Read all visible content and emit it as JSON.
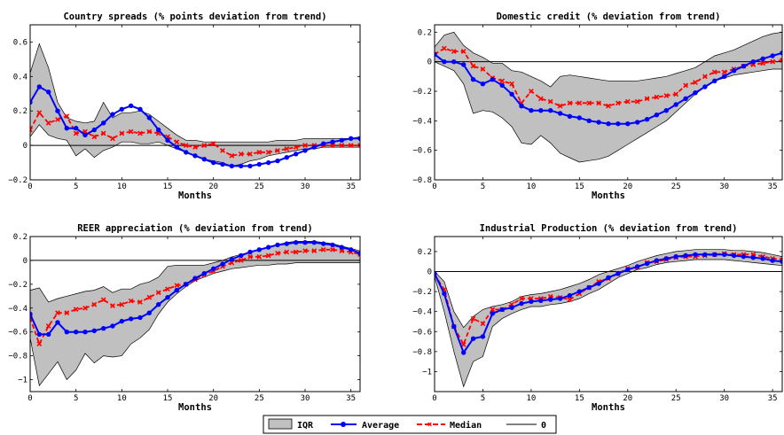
{
  "legend": {
    "items": [
      {
        "key": "iqr",
        "label": "IQR"
      },
      {
        "key": "avg",
        "label": "Average"
      },
      {
        "key": "med",
        "label": "Median"
      },
      {
        "key": "zero",
        "label": "0"
      }
    ]
  },
  "colors": {
    "band_fill": "#c0c0c0",
    "band_edge": "#000000",
    "average": "#0000ff",
    "median": "#ff0000",
    "zero": "#000000"
  },
  "chart_data": [
    {
      "type": "line",
      "title": "Country spreads (% points deviation from trend)",
      "xlabel": "Months",
      "xlim": [
        0,
        36
      ],
      "ylim": [
        -0.2,
        0.7
      ],
      "xticks": [
        0,
        5,
        10,
        15,
        20,
        25,
        30,
        35
      ],
      "xtick_labels": [
        "0",
        "5",
        "10",
        "15",
        "20",
        "25",
        "30",
        "35"
      ],
      "yticks": [
        -0.2,
        0,
        0.2,
        0.4,
        0.6
      ],
      "ytick_labels": [
        "−0.2",
        "0",
        "0.2",
        "0.4",
        "0.6"
      ],
      "x": [
        0,
        1,
        2,
        3,
        4,
        5,
        6,
        7,
        8,
        9,
        10,
        11,
        12,
        13,
        14,
        15,
        16,
        17,
        18,
        19,
        20,
        21,
        22,
        23,
        24,
        25,
        26,
        27,
        28,
        29,
        30,
        31,
        32,
        33,
        34,
        35,
        36
      ],
      "average": [
        0.25,
        0.34,
        0.31,
        0.2,
        0.1,
        0.1,
        0.06,
        0.09,
        0.13,
        0.18,
        0.21,
        0.23,
        0.21,
        0.16,
        0.09,
        0.03,
        -0.01,
        -0.04,
        -0.06,
        -0.08,
        -0.1,
        -0.11,
        -0.12,
        -0.12,
        -0.12,
        -0.11,
        -0.1,
        -0.09,
        -0.07,
        -0.05,
        -0.03,
        -0.01,
        0.01,
        0.02,
        0.03,
        0.04,
        0.04
      ],
      "median": [
        0.09,
        0.19,
        0.13,
        0.15,
        0.17,
        0.07,
        0.08,
        0.05,
        0.07,
        0.04,
        0.07,
        0.08,
        0.07,
        0.08,
        0.07,
        0.05,
        0.02,
        0.0,
        -0.01,
        0.0,
        0.01,
        -0.03,
        -0.06,
        -0.05,
        -0.05,
        -0.04,
        -0.04,
        -0.03,
        -0.02,
        -0.01,
        0.0,
        0.0,
        0.0,
        0.0,
        0.0,
        0.0,
        0.0
      ],
      "iqr_upper": [
        0.42,
        0.59,
        0.45,
        0.25,
        0.16,
        0.14,
        0.13,
        0.14,
        0.25,
        0.16,
        0.19,
        0.19,
        0.2,
        0.18,
        0.14,
        0.1,
        0.06,
        0.03,
        0.03,
        0.02,
        0.02,
        0.02,
        0.02,
        0.02,
        0.02,
        0.02,
        0.02,
        0.03,
        0.03,
        0.03,
        0.04,
        0.04,
        0.04,
        0.04,
        0.04,
        0.04,
        0.05
      ],
      "iqr_lower": [
        0.05,
        0.12,
        0.06,
        0.04,
        0.03,
        -0.06,
        -0.02,
        -0.07,
        -0.03,
        -0.01,
        0.02,
        0.02,
        0.01,
        0.01,
        0.02,
        0.0,
        -0.02,
        -0.04,
        -0.06,
        -0.08,
        -0.09,
        -0.1,
        -0.12,
        -0.11,
        -0.09,
        -0.08,
        -0.06,
        -0.05,
        -0.04,
        -0.03,
        -0.02,
        -0.02,
        -0.01,
        -0.01,
        -0.01,
        -0.01,
        -0.01
      ]
    },
    {
      "type": "line",
      "title": "Domestic credit (% deviation from trend)",
      "xlabel": "Months",
      "xlim": [
        0,
        36
      ],
      "ylim": [
        -0.8,
        0.25
      ],
      "xticks": [
        0,
        5,
        10,
        15,
        20,
        25,
        30,
        35
      ],
      "xtick_labels": [
        "0",
        "5",
        "10",
        "15",
        "20",
        "25",
        "30",
        "35"
      ],
      "yticks": [
        -0.8,
        -0.6,
        -0.4,
        -0.2,
        0,
        0.2
      ],
      "ytick_labels": [
        "−0.8",
        "−0.6",
        "−0.4",
        "−0.2",
        "0",
        "0.2"
      ],
      "x": [
        0,
        1,
        2,
        3,
        4,
        5,
        6,
        7,
        8,
        9,
        10,
        11,
        12,
        13,
        14,
        15,
        16,
        17,
        18,
        19,
        20,
        21,
        22,
        23,
        24,
        25,
        26,
        27,
        28,
        29,
        30,
        31,
        32,
        33,
        34,
        35,
        36
      ],
      "average": [
        0.05,
        0.0,
        0.0,
        -0.02,
        -0.12,
        -0.15,
        -0.12,
        -0.16,
        -0.22,
        -0.3,
        -0.33,
        -0.33,
        -0.33,
        -0.35,
        -0.37,
        -0.38,
        -0.4,
        -0.41,
        -0.42,
        -0.42,
        -0.42,
        -0.41,
        -0.39,
        -0.36,
        -0.33,
        -0.29,
        -0.25,
        -0.21,
        -0.17,
        -0.13,
        -0.1,
        -0.06,
        -0.03,
        0.0,
        0.02,
        0.04,
        0.06
      ],
      "median": [
        0.05,
        0.09,
        0.07,
        0.07,
        -0.03,
        -0.05,
        -0.11,
        -0.13,
        -0.15,
        -0.28,
        -0.2,
        -0.25,
        -0.27,
        -0.3,
        -0.28,
        -0.28,
        -0.28,
        -0.28,
        -0.3,
        -0.28,
        -0.27,
        -0.27,
        -0.25,
        -0.24,
        -0.23,
        -0.22,
        -0.16,
        -0.14,
        -0.1,
        -0.07,
        -0.07,
        -0.05,
        -0.03,
        -0.02,
        -0.01,
        0.0,
        0.01
      ],
      "iqr_upper": [
        0.1,
        0.18,
        0.2,
        0.11,
        0.06,
        0.03,
        -0.01,
        -0.01,
        -0.06,
        -0.07,
        -0.1,
        -0.13,
        -0.17,
        -0.1,
        -0.09,
        -0.1,
        -0.11,
        -0.12,
        -0.13,
        -0.13,
        -0.13,
        -0.13,
        -0.12,
        -0.11,
        -0.1,
        -0.08,
        -0.06,
        -0.04,
        0.0,
        0.04,
        0.06,
        0.08,
        0.11,
        0.14,
        0.17,
        0.19,
        0.2
      ],
      "iqr_lower": [
        0.0,
        -0.03,
        -0.06,
        -0.15,
        -0.35,
        -0.33,
        -0.34,
        -0.38,
        -0.44,
        -0.55,
        -0.56,
        -0.5,
        -0.55,
        -0.62,
        -0.65,
        -0.68,
        -0.67,
        -0.66,
        -0.64,
        -0.6,
        -0.56,
        -0.52,
        -0.48,
        -0.44,
        -0.4,
        -0.34,
        -0.28,
        -0.22,
        -0.17,
        -0.13,
        -0.11,
        -0.09,
        -0.08,
        -0.07,
        -0.06,
        -0.05,
        -0.05
      ]
    },
    {
      "type": "line",
      "title": "REER appreciation (% deviation from trend)",
      "xlabel": "Months",
      "xlim": [
        0,
        36
      ],
      "ylim": [
        -1.1,
        0.2
      ],
      "xticks": [
        0,
        5,
        10,
        15,
        20,
        25,
        30,
        35
      ],
      "xtick_labels": [
        "0",
        "5",
        "10",
        "15",
        "20",
        "25",
        "30",
        "35"
      ],
      "yticks": [
        -1,
        -0.8,
        -0.6,
        -0.4,
        -0.2,
        0,
        0.2
      ],
      "ytick_labels": [
        "−1",
        "−0.8",
        "−0.6",
        "−0.4",
        "−0.2",
        "0",
        "0.2"
      ],
      "x": [
        0,
        1,
        2,
        3,
        4,
        5,
        6,
        7,
        8,
        9,
        10,
        11,
        12,
        13,
        14,
        15,
        16,
        17,
        18,
        19,
        20,
        21,
        22,
        23,
        24,
        25,
        26,
        27,
        28,
        29,
        30,
        31,
        32,
        33,
        34,
        35,
        36
      ],
      "average": [
        -0.45,
        -0.62,
        -0.62,
        -0.52,
        -0.6,
        -0.6,
        -0.6,
        -0.59,
        -0.57,
        -0.55,
        -0.51,
        -0.49,
        -0.48,
        -0.44,
        -0.37,
        -0.31,
        -0.25,
        -0.2,
        -0.15,
        -0.11,
        -0.07,
        -0.03,
        0.01,
        0.04,
        0.07,
        0.09,
        0.11,
        0.13,
        0.14,
        0.15,
        0.15,
        0.15,
        0.14,
        0.13,
        0.11,
        0.09,
        0.06
      ],
      "median": [
        -0.48,
        -0.7,
        -0.55,
        -0.44,
        -0.44,
        -0.41,
        -0.4,
        -0.37,
        -0.33,
        -0.38,
        -0.37,
        -0.34,
        -0.35,
        -0.31,
        -0.27,
        -0.24,
        -0.21,
        -0.2,
        -0.16,
        -0.12,
        -0.09,
        -0.05,
        -0.02,
        0.0,
        0.03,
        0.03,
        0.04,
        0.06,
        0.07,
        0.07,
        0.08,
        0.08,
        0.09,
        0.09,
        0.08,
        0.07,
        0.05
      ],
      "iqr_upper": [
        -0.25,
        -0.23,
        -0.35,
        -0.32,
        -0.3,
        -0.28,
        -0.26,
        -0.25,
        -0.22,
        -0.27,
        -0.24,
        -0.24,
        -0.2,
        -0.18,
        -0.14,
        -0.05,
        -0.04,
        -0.04,
        -0.04,
        -0.04,
        -0.02,
        0.0,
        0.03,
        0.05,
        0.07,
        0.09,
        0.11,
        0.13,
        0.15,
        0.16,
        0.16,
        0.16,
        0.15,
        0.14,
        0.12,
        0.1,
        0.08
      ],
      "iqr_lower": [
        -0.65,
        -1.05,
        -0.95,
        -0.85,
        -1.0,
        -0.92,
        -0.78,
        -0.86,
        -0.8,
        -0.81,
        -0.8,
        -0.7,
        -0.65,
        -0.58,
        -0.45,
        -0.35,
        -0.28,
        -0.22,
        -0.17,
        -0.14,
        -0.11,
        -0.09,
        -0.07,
        -0.06,
        -0.05,
        -0.04,
        -0.04,
        -0.03,
        -0.03,
        -0.02,
        -0.02,
        -0.02,
        -0.02,
        -0.02,
        -0.02,
        -0.02,
        -0.02
      ]
    },
    {
      "type": "line",
      "title": "Industrial Production (% deviation from trend)",
      "xlabel": "Months",
      "xlim": [
        0,
        36
      ],
      "ylim": [
        -1.2,
        0.35
      ],
      "xticks": [
        0,
        5,
        10,
        15,
        20,
        25,
        30,
        35
      ],
      "xtick_labels": [
        "0",
        "5",
        "10",
        "15",
        "20",
        "25",
        "30",
        "35"
      ],
      "yticks": [
        -1,
        -0.8,
        -0.6,
        -0.4,
        -0.2,
        0,
        0.2
      ],
      "ytick_labels": [
        "−1",
        "−0.8",
        "−0.6",
        "−0.4",
        "−0.2",
        "0",
        "0.2"
      ],
      "x": [
        0,
        1,
        2,
        3,
        4,
        5,
        6,
        7,
        8,
        9,
        10,
        11,
        12,
        13,
        14,
        15,
        16,
        17,
        18,
        19,
        20,
        21,
        22,
        23,
        24,
        25,
        26,
        27,
        28,
        29,
        30,
        31,
        32,
        33,
        34,
        35,
        36
      ],
      "average": [
        -0.02,
        -0.22,
        -0.55,
        -0.81,
        -0.67,
        -0.65,
        -0.42,
        -0.38,
        -0.36,
        -0.32,
        -0.3,
        -0.29,
        -0.28,
        -0.27,
        -0.24,
        -0.2,
        -0.16,
        -0.12,
        -0.06,
        -0.02,
        0.02,
        0.05,
        0.08,
        0.11,
        0.13,
        0.15,
        0.16,
        0.17,
        0.17,
        0.17,
        0.17,
        0.16,
        0.15,
        0.14,
        0.13,
        0.11,
        0.1
      ],
      "median": [
        -0.03,
        -0.18,
        -0.55,
        -0.73,
        -0.47,
        -0.52,
        -0.38,
        -0.38,
        -0.33,
        -0.27,
        -0.27,
        -0.27,
        -0.25,
        -0.26,
        -0.28,
        -0.22,
        -0.16,
        -0.1,
        -0.07,
        -0.02,
        0.03,
        0.04,
        0.09,
        0.1,
        0.12,
        0.14,
        0.15,
        0.15,
        0.16,
        0.17,
        0.18,
        0.17,
        0.17,
        0.17,
        0.15,
        0.13,
        0.12
      ],
      "iqr_upper": [
        0.0,
        -0.1,
        -0.4,
        -0.56,
        -0.45,
        -0.38,
        -0.35,
        -0.33,
        -0.3,
        -0.25,
        -0.23,
        -0.22,
        -0.2,
        -0.18,
        -0.15,
        -0.12,
        -0.08,
        -0.03,
        0.0,
        0.03,
        0.06,
        0.1,
        0.13,
        0.16,
        0.18,
        0.2,
        0.21,
        0.22,
        0.22,
        0.22,
        0.22,
        0.21,
        0.21,
        0.2,
        0.19,
        0.17,
        0.15
      ],
      "iqr_lower": [
        -0.05,
        -0.4,
        -0.8,
        -1.15,
        -0.9,
        -0.85,
        -0.55,
        -0.47,
        -0.42,
        -0.38,
        -0.35,
        -0.35,
        -0.33,
        -0.32,
        -0.3,
        -0.27,
        -0.22,
        -0.18,
        -0.12,
        -0.06,
        -0.02,
        0.02,
        0.04,
        0.07,
        0.09,
        0.1,
        0.11,
        0.12,
        0.12,
        0.12,
        0.12,
        0.11,
        0.1,
        0.09,
        0.08,
        0.07,
        0.06
      ]
    }
  ]
}
